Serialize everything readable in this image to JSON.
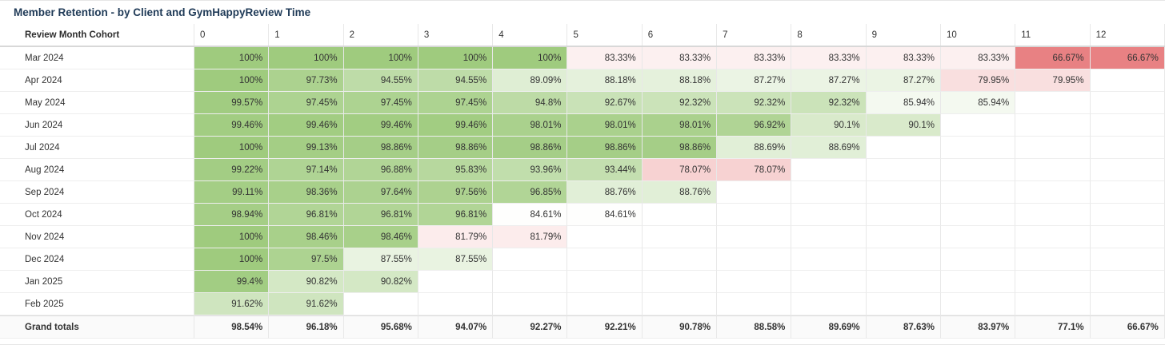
{
  "title": "Member Retention - by Client and GymHappyReview Time",
  "header": {
    "row_label": "Review Month Cohort",
    "columns": [
      "0",
      "1",
      "2",
      "3",
      "4",
      "5",
      "6",
      "7",
      "8",
      "9",
      "10",
      "11",
      "12"
    ]
  },
  "rows": [
    {
      "label": "Mar 2024",
      "values": [
        "100%",
        "100%",
        "100%",
        "100%",
        "100%",
        "83.33%",
        "83.33%",
        "83.33%",
        "83.33%",
        "83.33%",
        "83.33%",
        "66.67%",
        "66.67%"
      ]
    },
    {
      "label": "Apr 2024",
      "values": [
        "100%",
        "97.73%",
        "94.55%",
        "94.55%",
        "89.09%",
        "88.18%",
        "88.18%",
        "87.27%",
        "87.27%",
        "87.27%",
        "79.95%",
        "79.95%",
        ""
      ]
    },
    {
      "label": "May 2024",
      "values": [
        "99.57%",
        "97.45%",
        "97.45%",
        "97.45%",
        "94.8%",
        "92.67%",
        "92.32%",
        "92.32%",
        "92.32%",
        "85.94%",
        "85.94%",
        "",
        ""
      ]
    },
    {
      "label": "Jun 2024",
      "values": [
        "99.46%",
        "99.46%",
        "99.46%",
        "99.46%",
        "98.01%",
        "98.01%",
        "98.01%",
        "96.92%",
        "90.1%",
        "90.1%",
        "",
        "",
        ""
      ]
    },
    {
      "label": "Jul 2024",
      "values": [
        "100%",
        "99.13%",
        "98.86%",
        "98.86%",
        "98.86%",
        "98.86%",
        "98.86%",
        "88.69%",
        "88.69%",
        "",
        "",
        "",
        ""
      ]
    },
    {
      "label": "Aug 2024",
      "values": [
        "99.22%",
        "97.14%",
        "96.88%",
        "95.83%",
        "93.96%",
        "93.44%",
        "78.07%",
        "78.07%",
        "",
        "",
        "",
        "",
        ""
      ]
    },
    {
      "label": "Sep 2024",
      "values": [
        "99.11%",
        "98.36%",
        "97.64%",
        "97.56%",
        "96.85%",
        "88.76%",
        "88.76%",
        "",
        "",
        "",
        "",
        "",
        ""
      ]
    },
    {
      "label": "Oct 2024",
      "values": [
        "98.94%",
        "96.81%",
        "96.81%",
        "96.81%",
        "84.61%",
        "84.61%",
        "",
        "",
        "",
        "",
        "",
        "",
        ""
      ]
    },
    {
      "label": "Nov 2024",
      "values": [
        "100%",
        "98.46%",
        "98.46%",
        "81.79%",
        "81.79%",
        "",
        "",
        "",
        "",
        "",
        "",
        "",
        ""
      ]
    },
    {
      "label": "Dec 2024",
      "values": [
        "100%",
        "97.5%",
        "87.55%",
        "87.55%",
        "",
        "",
        "",
        "",
        "",
        "",
        "",
        "",
        ""
      ]
    },
    {
      "label": "Jan 2025",
      "values": [
        "99.4%",
        "90.82%",
        "90.82%",
        "",
        "",
        "",
        "",
        "",
        "",
        "",
        "",
        "",
        ""
      ]
    },
    {
      "label": "Feb 2025",
      "values": [
        "91.62%",
        "91.62%",
        "",
        "",
        "",
        "",
        "",
        "",
        "",
        "",
        "",
        "",
        ""
      ]
    }
  ],
  "totals": {
    "label": "Grand totals",
    "values": [
      "98.54%",
      "96.18%",
      "95.68%",
      "94.07%",
      "92.27%",
      "92.21%",
      "90.78%",
      "88.58%",
      "89.69%",
      "87.63%",
      "83.97%",
      "77.1%",
      "66.67%"
    ]
  },
  "colors": {
    "green_strong": "#9fcb7e",
    "neutral": "#ffffff",
    "red_strong": "#e88183",
    "text": "#333333",
    "title": "#1f3a57"
  }
}
